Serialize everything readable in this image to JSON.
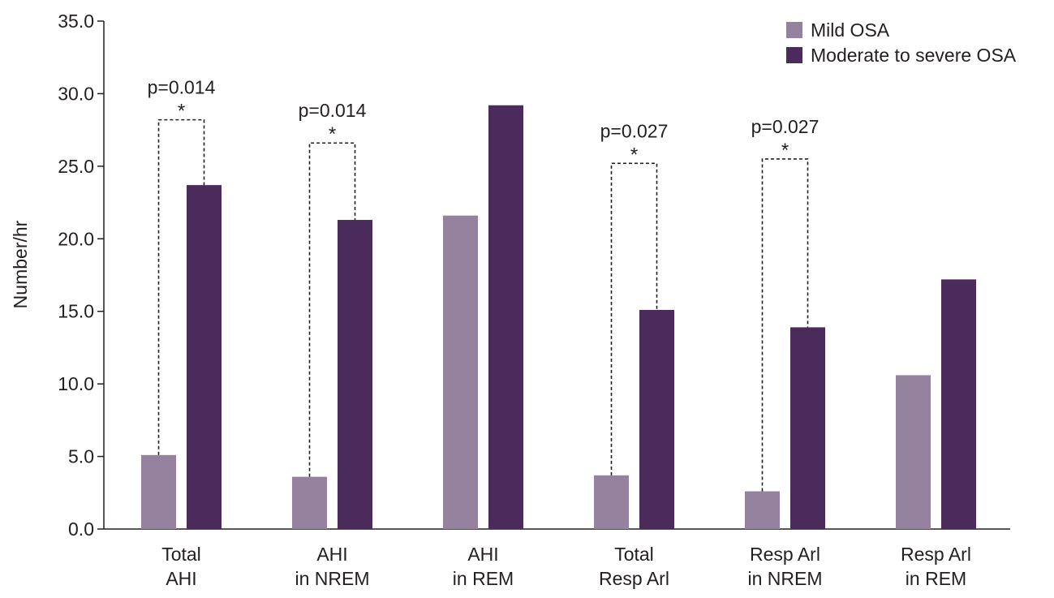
{
  "chart_data": {
    "type": "bar",
    "categories": [
      [
        "Total",
        "AHI"
      ],
      [
        "AHI",
        "in NREM"
      ],
      [
        "AHI",
        "in REM"
      ],
      [
        "Total",
        "Resp Arl"
      ],
      [
        "Resp Arl",
        "in NREM"
      ],
      [
        "Resp Arl",
        "in REM"
      ]
    ],
    "series": [
      {
        "name": "Mild OSA",
        "color": "#94829f",
        "values": [
          5.1,
          3.6,
          21.6,
          3.7,
          2.6,
          10.6
        ]
      },
      {
        "name": "Moderate to severe OSA",
        "color": "#4a2b5b",
        "values": [
          23.7,
          21.3,
          29.2,
          15.1,
          13.9,
          17.2
        ]
      }
    ],
    "ylabel": "Number/hr",
    "ylim": [
      0,
      35
    ],
    "yticks": [
      "0.0",
      "5.0",
      "10.0",
      "15.0",
      "20.0",
      "25.0",
      "30.0",
      "35.0"
    ],
    "legend_position": "top-right",
    "grid": false,
    "annotations": [
      {
        "category_index": 0,
        "p_label": "p=0.014",
        "star": "*",
        "bracket_top": 28.2
      },
      {
        "category_index": 1,
        "p_label": "p=0.014",
        "star": "*",
        "bracket_top": 26.6
      },
      {
        "category_index": 3,
        "p_label": "p=0.027",
        "star": "*",
        "bracket_top": 25.2
      },
      {
        "category_index": 4,
        "p_label": "p=0.027",
        "star": "*",
        "bracket_top": 25.5
      }
    ]
  }
}
